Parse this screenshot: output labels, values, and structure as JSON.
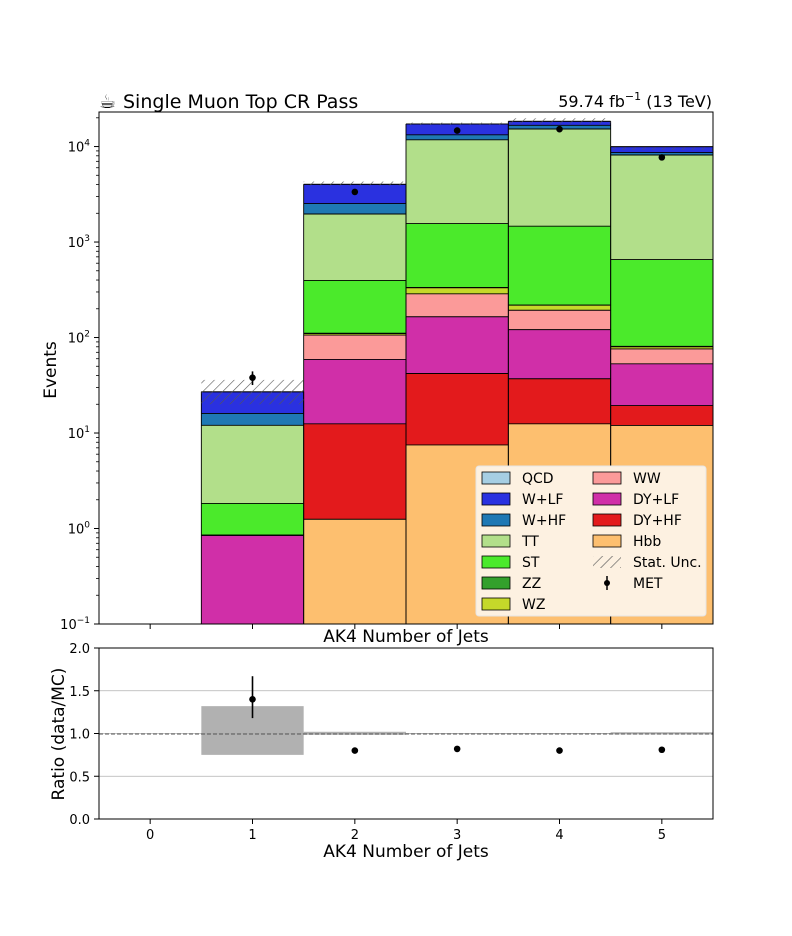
{
  "header": {
    "title_icon": "coffee-cup-icon",
    "title_glyph": "☕",
    "title": "Single Muon Top CR Pass",
    "lumi": "59.74 fb",
    "lumi_exp": "−1",
    "energy": "(13 TeV)"
  },
  "chart_data": [
    {
      "type": "bar",
      "stacked": true,
      "log_y": true,
      "title": "Single Muon Top CR Pass",
      "xlabel": "AK4 Number of Jets",
      "ylabel": "Events",
      "ylim": [
        0.1,
        23000
      ],
      "xlim": [
        -0.5,
        5.5
      ],
      "categories": [
        0,
        1,
        2,
        3,
        4,
        5
      ],
      "y_tick_labels": [
        "10",
        "10",
        "10",
        "10",
        "10",
        "10"
      ],
      "y_tick_exponents": [
        "−1",
        "0",
        "1",
        "2",
        "3",
        "4"
      ],
      "y_ticks": [
        0.1,
        1,
        10,
        100,
        1000,
        10000
      ],
      "series": [
        {
          "name": "Hbb",
          "color": "#fdbf6f",
          "values": [
            0,
            0,
            1.25,
            7.5,
            12.5,
            12.0
          ]
        },
        {
          "name": "DY+HF",
          "color": "#e31a1c",
          "values": [
            0,
            0,
            11.25,
            34.5,
            24.5,
            7.4
          ]
        },
        {
          "name": "DY+LF",
          "color": "#d02fa8",
          "values": [
            0,
            0.85,
            46.5,
            123,
            84,
            33.6
          ]
        },
        {
          "name": "WW",
          "color": "#fb9a99",
          "values": [
            0,
            0,
            47,
            122,
            72,
            23
          ]
        },
        {
          "name": "WZ",
          "color": "#c5d82a",
          "values": [
            0,
            0,
            4,
            45,
            25,
            4
          ]
        },
        {
          "name": "ZZ",
          "color": "#33a02c",
          "values": [
            0,
            0,
            1,
            2,
            1,
            1
          ]
        },
        {
          "name": "ST",
          "color": "#4bea2b",
          "values": [
            0,
            0.98,
            285,
            1227,
            1247,
            575
          ]
        },
        {
          "name": "TT",
          "color": "#b2df8a",
          "values": [
            0,
            10.2,
            1570,
            10200,
            13800,
            7500
          ]
        },
        {
          "name": "W+HF",
          "color": "#1f78b4",
          "values": [
            0,
            4.0,
            560,
            1500,
            1400,
            500
          ]
        },
        {
          "name": "W+LF",
          "color": "#2a31e0",
          "values": [
            0,
            11.0,
            1500,
            4000,
            1700,
            1300
          ]
        },
        {
          "name": "QCD",
          "color": "#a6cee3",
          "values": [
            0,
            0,
            0,
            0,
            0,
            0
          ]
        }
      ],
      "stat_unc": {
        "name": "Stat. Unc.",
        "up": [
          0,
          36,
          4300,
          17800,
          19800,
          9800
        ],
        "down": [
          0,
          20,
          3900,
          16800,
          17400,
          9200
        ]
      },
      "data": {
        "name": "MET",
        "color": "#000000",
        "x": [
          1,
          2,
          3,
          4,
          5
        ],
        "y": [
          38,
          3350,
          14700,
          15200,
          7700
        ],
        "err": [
          6.2,
          58,
          121,
          123,
          88
        ]
      },
      "legend": {
        "placement": "lower-right",
        "col1": [
          "QCD",
          "W+LF",
          "W+HF",
          "TT",
          "ST",
          "ZZ",
          "WZ"
        ],
        "col2": [
          "WW",
          "DY+LF",
          "DY+HF",
          "Hbb",
          "Stat. Unc.",
          "MET"
        ]
      }
    },
    {
      "type": "scatter",
      "xlabel": "AK4 Number of Jets",
      "ylabel": "Ratio (data/MC)",
      "xlim": [
        -0.5,
        5.5
      ],
      "ylim": [
        0.0,
        2.0
      ],
      "x_ticks": [
        0,
        1,
        2,
        3,
        4,
        5
      ],
      "x_tick_labels": [
        "0",
        "1",
        "2",
        "3",
        "4",
        "5"
      ],
      "y_ticks": [
        0.0,
        0.5,
        1.0,
        1.5,
        2.0
      ],
      "y_tick_labels": [
        "0.0",
        "0.5",
        "1.0",
        "1.5",
        "2.0"
      ],
      "grid": true,
      "reference_line": 1.0,
      "unc_bands": [
        {
          "bin": 1,
          "low": 0.75,
          "high": 1.32
        },
        {
          "bin": 2,
          "low": 0.985,
          "high": 1.02
        },
        {
          "bin": 3,
          "low": 0.995,
          "high": 1.005
        },
        {
          "bin": 4,
          "low": 0.995,
          "high": 1.005
        },
        {
          "bin": 5,
          "low": 0.99,
          "high": 1.015
        }
      ],
      "points": [
        {
          "x": 1,
          "y": 1.4,
          "err_up": 0.27,
          "err_down": 0.22
        },
        {
          "x": 2,
          "y": 0.8,
          "err_up": 0.01,
          "err_down": 0.01
        },
        {
          "x": 3,
          "y": 0.82,
          "err_up": 0.005,
          "err_down": 0.005
        },
        {
          "x": 4,
          "y": 0.8,
          "err_up": 0.005,
          "err_down": 0.005
        },
        {
          "x": 5,
          "y": 0.81,
          "err_up": 0.008,
          "err_down": 0.008
        }
      ]
    }
  ]
}
